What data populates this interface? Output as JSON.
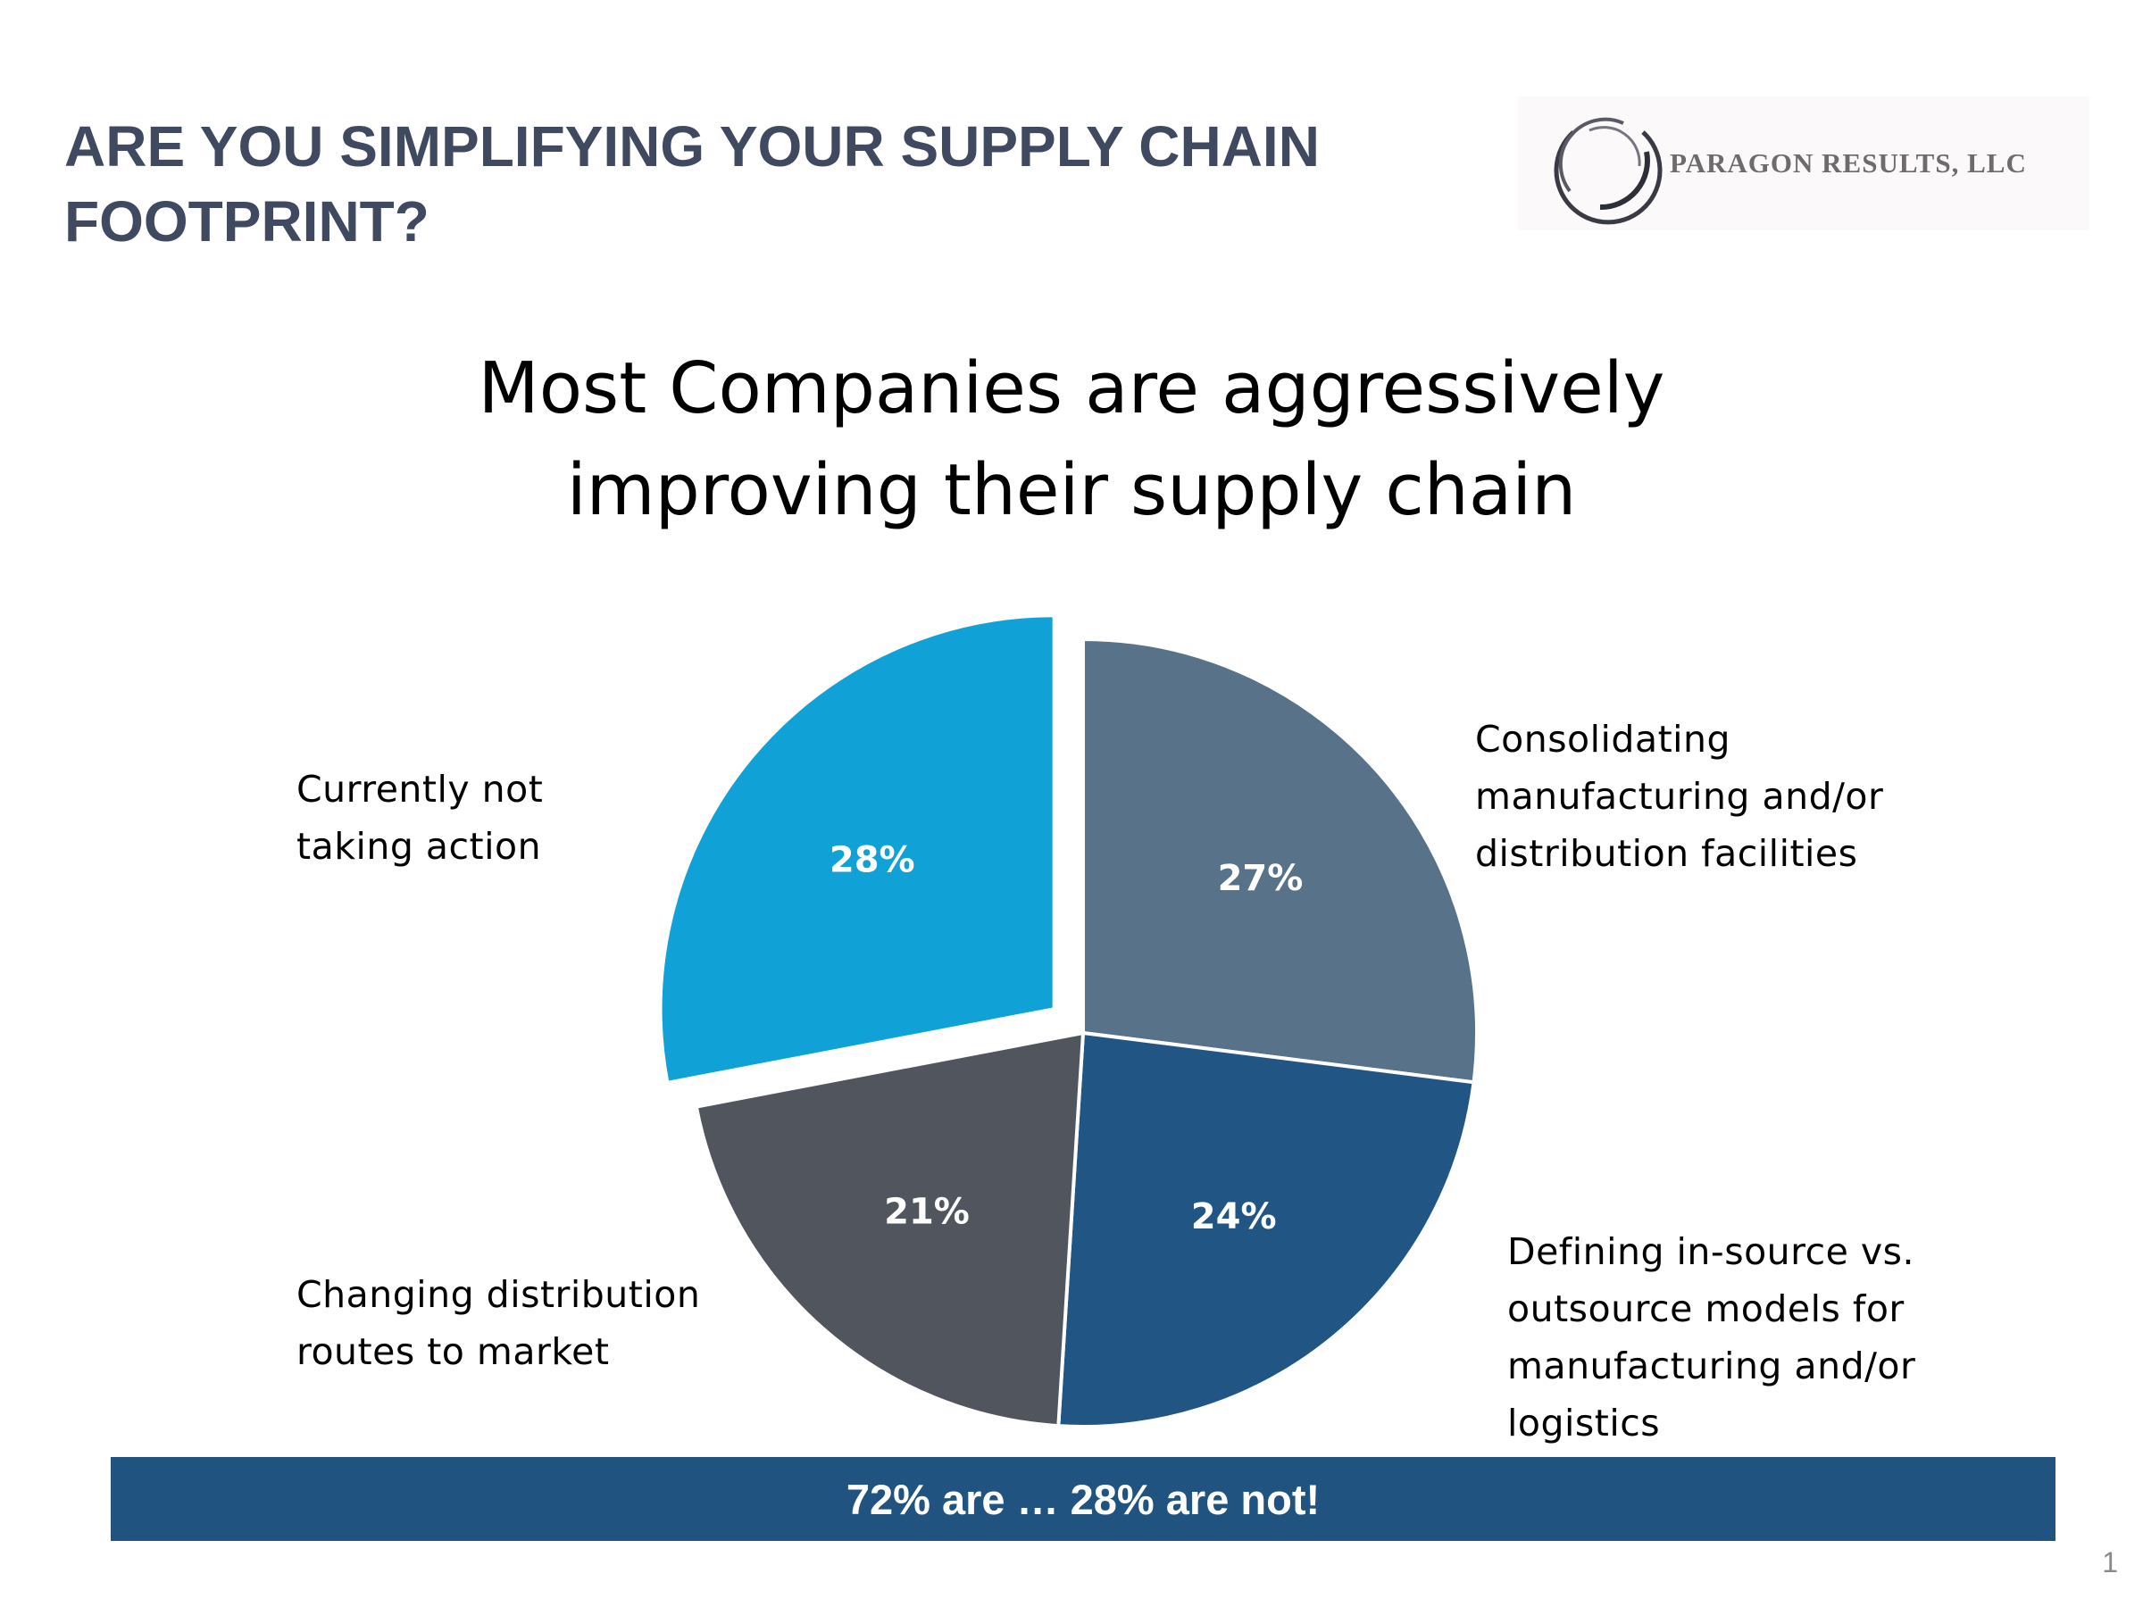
{
  "slide": {
    "title": "ARE YOU SIMPLIFYING YOUR SUPPLY CHAIN FOOTPRINT?",
    "logo_text": "PARAGON RESULTS, LLC",
    "banner": "72% are … 28% are not!",
    "page_number": "1"
  },
  "chart_data": {
    "type": "pie",
    "title": "Most Companies are aggressively improving their supply chain",
    "categories": [
      "Consolidating manufacturing and/or distribution facilities",
      "Defining in-source vs. outsource models for manufacturing and/or logistics",
      "Changing distribution routes to market",
      "Currently not taking action"
    ],
    "values": [
      27,
      24,
      21,
      28
    ],
    "data_labels": [
      "27%",
      "24%",
      "21%",
      "28%"
    ],
    "colors": [
      "#587289",
      "#215583",
      "#50555e",
      "#10a2d6"
    ],
    "exploded": [
      false,
      false,
      false,
      true
    ],
    "legend": "none"
  }
}
